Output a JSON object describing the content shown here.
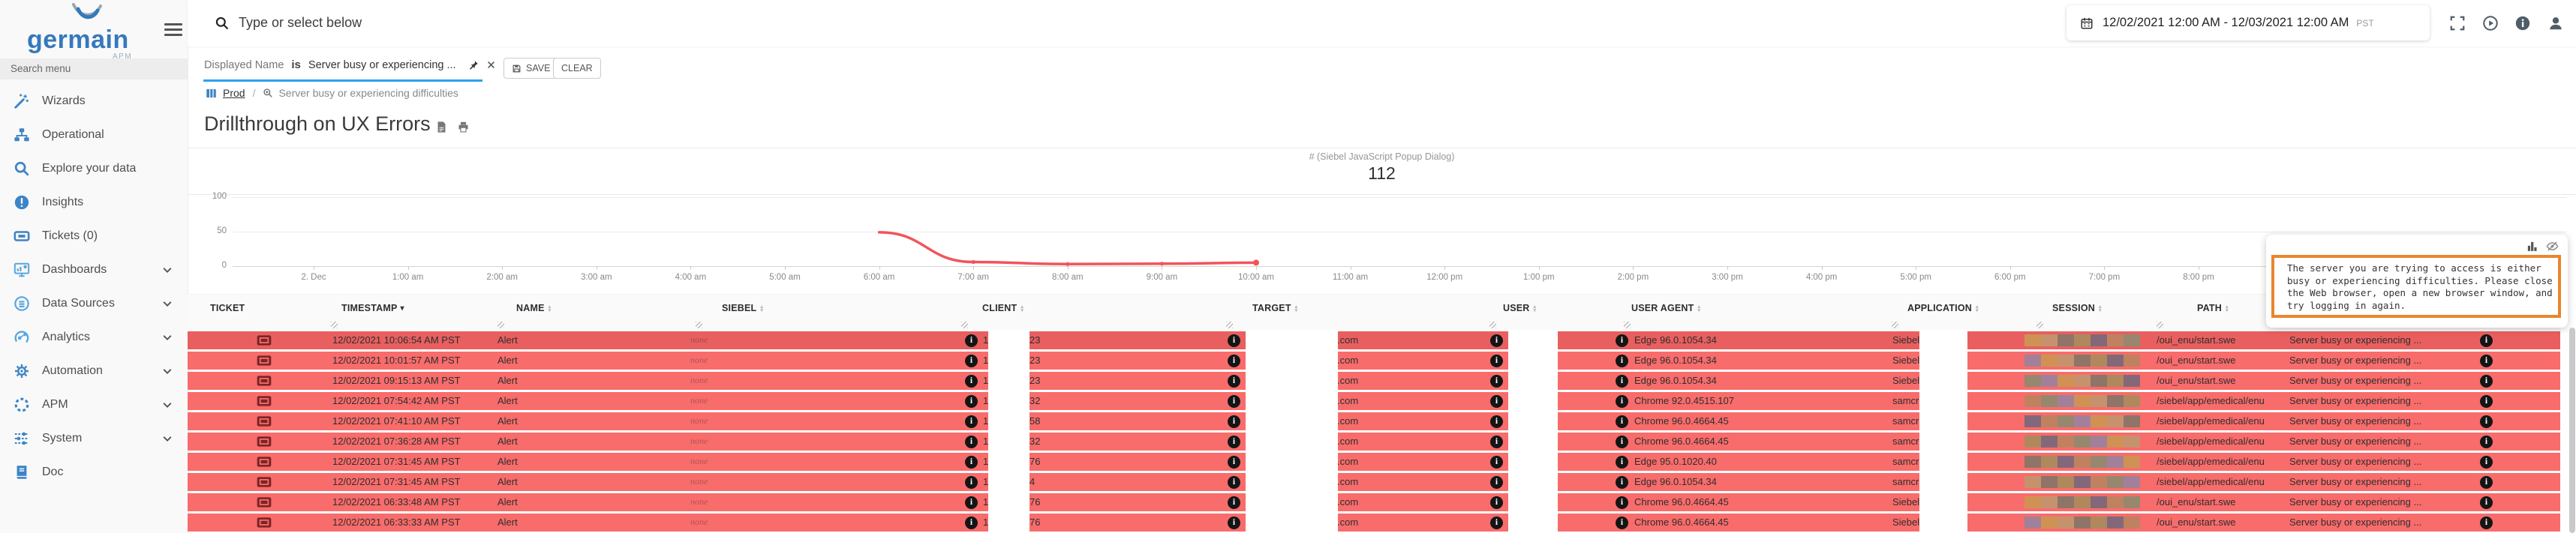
{
  "app": {
    "logo_text": "germain",
    "logo_sub": "APM"
  },
  "sidebar": {
    "search_placeholder": "Search menu",
    "items": [
      {
        "label": "Wizards",
        "icon": "wand-icon",
        "expandable": false
      },
      {
        "label": "Operational",
        "icon": "sitemap-icon",
        "expandable": false
      },
      {
        "label": "Explore your data",
        "icon": "search-icon",
        "expandable": false
      },
      {
        "label": "Insights",
        "icon": "alert-circle-icon",
        "expandable": false
      },
      {
        "label": "Tickets (0)",
        "icon": "ticket-icon",
        "expandable": false
      },
      {
        "label": "Dashboards",
        "icon": "dashboard-icon",
        "expandable": true
      },
      {
        "label": "Data Sources",
        "icon": "datasource-icon",
        "expandable": true
      },
      {
        "label": "Analytics",
        "icon": "analytics-icon",
        "expandable": true
      },
      {
        "label": "Automation",
        "icon": "gear-icon",
        "expandable": true
      },
      {
        "label": "APM",
        "icon": "dashed-circle-icon",
        "expandable": true
      },
      {
        "label": "System",
        "icon": "sliders-icon",
        "expandable": true
      },
      {
        "label": "Doc",
        "icon": "book-icon",
        "expandable": false
      }
    ]
  },
  "topbar": {
    "search_placeholder": "Type or select below",
    "date_range": "12/02/2021 12:00 AM - 12/03/2021 12:00 AM",
    "timezone": "PST"
  },
  "filter": {
    "field": "Displayed Name",
    "operator": "is",
    "value": "Server busy or experiencing ...",
    "save_label": "SAVE",
    "clear_label": "CLEAR"
  },
  "breadcrumb": {
    "root": "Prod",
    "separator": "/",
    "current": "Server busy or experiencing difficulties"
  },
  "page": {
    "title": "Drillthrough on UX Errors"
  },
  "chart_data": {
    "type": "line",
    "title": "# (Siebel JavaScript Popup Dialog)",
    "kpi_label": "# (Siebel JavaScript Popup Dialog)",
    "kpi_value": "112",
    "xlabel": "",
    "ylabel": "",
    "ylim": [
      0,
      100
    ],
    "grid": true,
    "legend_position": "none",
    "x_tick_labels": [
      "2. Dec",
      "1:00 am",
      "2:00 am",
      "3:00 am",
      "4:00 am",
      "5:00 am",
      "6:00 am",
      "7:00 am",
      "8:00 am",
      "9:00 am",
      "10:00 am",
      "11:00 am",
      "12:00 pm",
      "1:00 pm",
      "2:00 pm",
      "3:00 pm",
      "4:00 pm",
      "5:00 pm",
      "6:00 pm",
      "7:00 pm",
      "8:00 pm"
    ],
    "y_ticks": [
      0,
      50,
      100
    ],
    "series": [
      {
        "name": "# (Siebel JavaScript Popup Dialog)",
        "color": "#f1545c",
        "points": [
          {
            "x": "6:00 am",
            "y": 49
          },
          {
            "x": "7:00 am",
            "y": 6
          },
          {
            "x": "8:00 am",
            "y": 3
          },
          {
            "x": "9:00 am",
            "y": 3.5
          },
          {
            "x": "10:00 am",
            "y": 5
          }
        ]
      }
    ]
  },
  "table": {
    "headers": [
      {
        "label": "TICKET",
        "sort": "none"
      },
      {
        "label": "TIMESTAMP",
        "sort": "desc"
      },
      {
        "label": "NAME",
        "sort": "both"
      },
      {
        "label": "SIEBEL",
        "sort": "both"
      },
      {
        "label": "CLIENT",
        "sort": "both"
      },
      {
        "label": "TARGET",
        "sort": "both"
      },
      {
        "label": "USER",
        "sort": "both"
      },
      {
        "label": "USER AGENT",
        "sort": "both"
      },
      {
        "label": "APPLICATION",
        "sort": "both"
      },
      {
        "label": "SESSION",
        "sort": "both"
      },
      {
        "label": "PATH",
        "sort": "both"
      }
    ],
    "rows": [
      {
        "timestamp": "12/02/2021 10:06:54 AM PST",
        "name": "Alert",
        "siebel": "none",
        "client_prefix": "1",
        "client_suffix": "23",
        "target_suffix": ".com",
        "user_agent": "Edge 96.0.1054.34",
        "application": "Siebel",
        "path": "/oui_enu/start.swe",
        "message": "Server busy or experiencing ..."
      },
      {
        "timestamp": "12/02/2021 10:01:57 AM PST",
        "name": "Alert",
        "siebel": "none",
        "client_prefix": "1",
        "client_suffix": "23",
        "target_suffix": ".com",
        "user_agent": "Edge 96.0.1054.34",
        "application": "Siebel",
        "path": "/oui_enu/start.swe",
        "message": "Server busy or experiencing ..."
      },
      {
        "timestamp": "12/02/2021 09:15:13 AM PST",
        "name": "Alert",
        "siebel": "none",
        "client_prefix": "1",
        "client_suffix": "23",
        "target_suffix": ".com",
        "user_agent": "Edge 96.0.1054.34",
        "application": "Siebel",
        "path": "/oui_enu/start.swe",
        "message": "Server busy or experiencing ..."
      },
      {
        "timestamp": "12/02/2021 07:54:42 AM PST",
        "name": "Alert",
        "siebel": "none",
        "client_prefix": "1",
        "client_suffix": "32",
        "target_suffix": ".com",
        "user_agent": "Chrome 92.0.4515.107",
        "application": "samcr",
        "path": "/siebel/app/emedical/enu",
        "message": "Server busy or experiencing ..."
      },
      {
        "timestamp": "12/02/2021 07:41:10 AM PST",
        "name": "Alert",
        "siebel": "none",
        "client_prefix": "1",
        "client_suffix": "58",
        "target_suffix": ".com",
        "user_agent": "Chrome 96.0.4664.45",
        "application": "samcr",
        "path": "/siebel/app/emedical/enu",
        "message": "Server busy or experiencing ..."
      },
      {
        "timestamp": "12/02/2021 07:36:28 AM PST",
        "name": "Alert",
        "siebel": "none",
        "client_prefix": "1",
        "client_suffix": "32",
        "target_suffix": ".com",
        "user_agent": "Chrome 96.0.4664.45",
        "application": "samcr",
        "path": "/siebel/app/emedical/enu",
        "message": "Server busy or experiencing ..."
      },
      {
        "timestamp": "12/02/2021 07:31:45 AM PST",
        "name": "Alert",
        "siebel": "none",
        "client_prefix": "1",
        "client_suffix": "76",
        "target_suffix": ".com",
        "user_agent": "Edge 95.0.1020.40",
        "application": "samcr",
        "path": "/siebel/app/emedical/enu",
        "message": "Server busy or experiencing ..."
      },
      {
        "timestamp": "12/02/2021 07:31:45 AM PST",
        "name": "Alert",
        "siebel": "none",
        "client_prefix": "1",
        "client_suffix": "4",
        "target_suffix": ".com",
        "user_agent": "Edge 96.0.1054.34",
        "application": "samcr",
        "path": "/siebel/app/emedical/enu",
        "message": "Server busy or experiencing ..."
      },
      {
        "timestamp": "12/02/2021 06:33:48 AM PST",
        "name": "Alert",
        "siebel": "none",
        "client_prefix": "1",
        "client_suffix": "76",
        "target_suffix": ".com",
        "user_agent": "Chrome 96.0.4664.45",
        "application": "Siebel",
        "path": "/oui_enu/start.swe",
        "message": "Server busy or experiencing ..."
      },
      {
        "timestamp": "12/02/2021 06:33:33 AM PST",
        "name": "Alert",
        "siebel": "none",
        "client_prefix": "1",
        "client_suffix": "76",
        "target_suffix": ".com",
        "user_agent": "Chrome 96.0.4664.45",
        "application": "Siebel",
        "path": "/oui_enu/start.swe",
        "message": "Server busy or experiencing ..."
      }
    ]
  },
  "popup": {
    "lines": [
      "The server you are trying to access is either",
      "busy or experiencing difficulties. Please close",
      "the Web browser, open a new browser window, and",
      "try logging in again."
    ]
  },
  "colors": {
    "accent_blue": "#2ba2f0",
    "sidebar_icon_blue": "#3d84c6",
    "row_red": "#f86c6b",
    "row_red_selected": "#e95f5f",
    "line_red": "#f1545c",
    "ticket_icon_maroon": "#7b2525",
    "popup_border_orange": "#e8862d",
    "scrollbar_gray": "#c9c9c9",
    "session_mosaic_palette": [
      "#cf9254",
      "#c08160",
      "#8f7468",
      "#a3809a",
      "#83687a",
      "#c6926e",
      "#97876f",
      "#b0885e"
    ]
  }
}
